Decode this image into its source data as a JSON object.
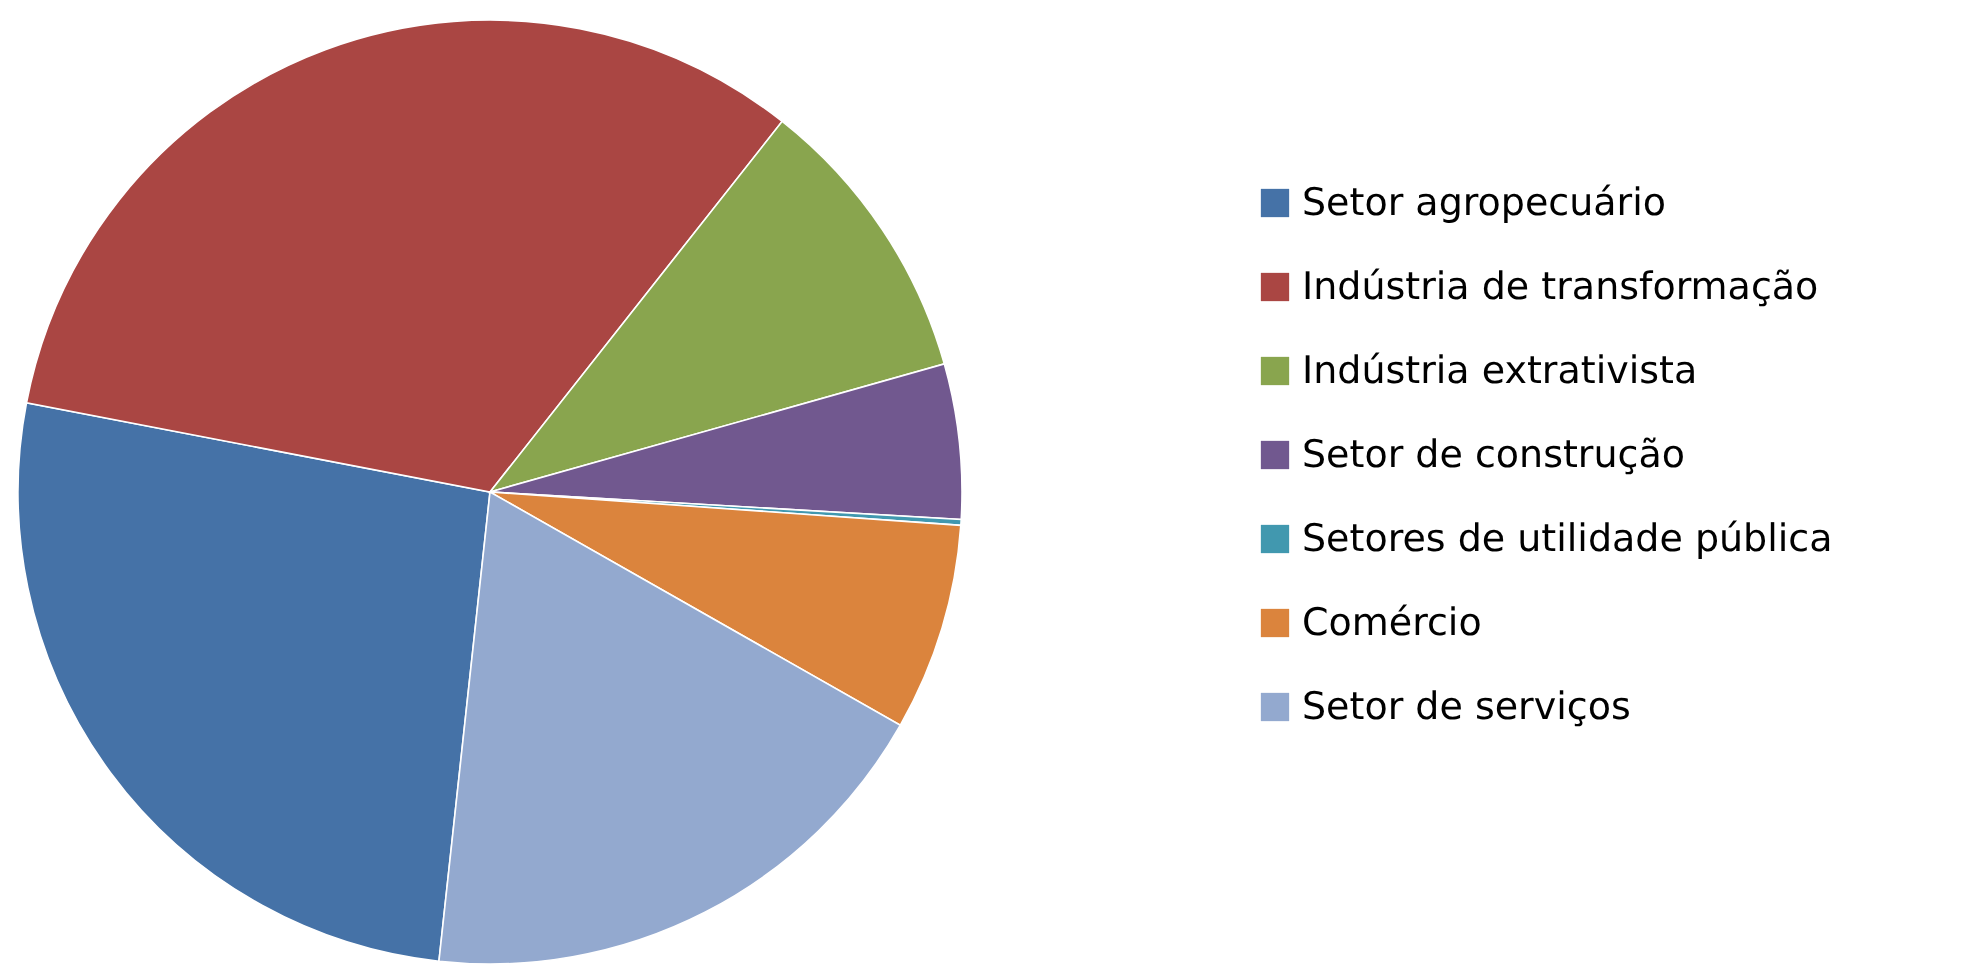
{
  "chart_data": {
    "type": "pie",
    "categories": [
      "Setor agropecuário",
      "Indústria de transformação",
      "Indústria extrativista",
      "Setor de construção",
      "Setores de utilidade pública",
      "Comércio",
      "Setor de serviços"
    ],
    "values": [
      26.3,
      32.6,
      10.0,
      5.3,
      0.2,
      7.1,
      18.5
    ],
    "colors": [
      "#4572a7",
      "#aa4643",
      "#89a54e",
      "#71588f",
      "#4198af",
      "#db843d",
      "#93a9cf"
    ],
    "legend": "right"
  }
}
